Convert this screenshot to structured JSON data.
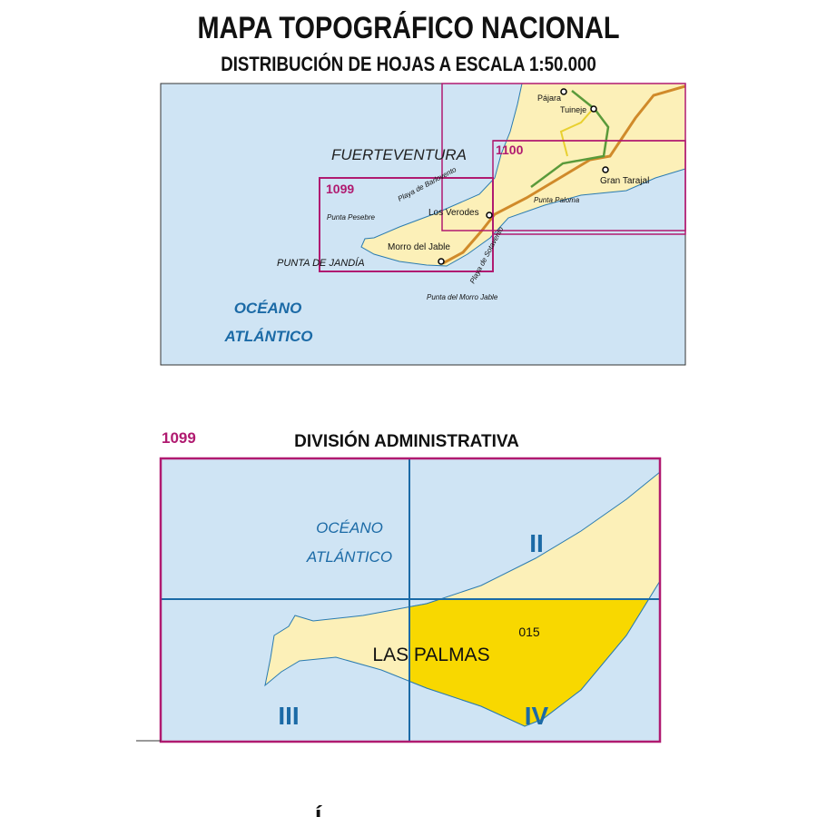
{
  "header": {
    "title": "MAPA TOPOGRÁFICO NACIONAL",
    "subtitle": "DISTRIBUCIÓN DE HOJAS A ESCALA 1:50.000"
  },
  "overview_map": {
    "island": "FUERTEVENTURA",
    "ocean_line1": "OCÉANO",
    "ocean_line2": "ATLÁNTICO",
    "sheets": [
      "1099",
      "1100"
    ],
    "places": [
      "Pájara",
      "Tuineje",
      "Gran Tarajal",
      "Los Verodes",
      "Morro del Jable"
    ],
    "features": [
      "Punta Pesebre",
      "PUNTA DE JANDÍA",
      "Playa de Barlovento",
      "Playa de Sotavento",
      "Punta Paloma",
      "Punta del Morro Jable"
    ]
  },
  "admin_map": {
    "sheet": "1099",
    "title": "DIVISIÓN ADMINISTRATIVA",
    "ocean_line1": "OCÉANO",
    "ocean_line2": "ATLÁNTICO",
    "province": "LAS PALMAS",
    "municipality_code": "015",
    "quadrants": [
      "II",
      "III",
      "IV"
    ]
  },
  "footer": {
    "partial_char": "Í"
  },
  "colors": {
    "sea": "#cfe4f4",
    "land": "#fcf0b8",
    "highlight": "#f8d800",
    "sheet_border": "#b01a70",
    "label_blue": "#1b6aa6"
  }
}
